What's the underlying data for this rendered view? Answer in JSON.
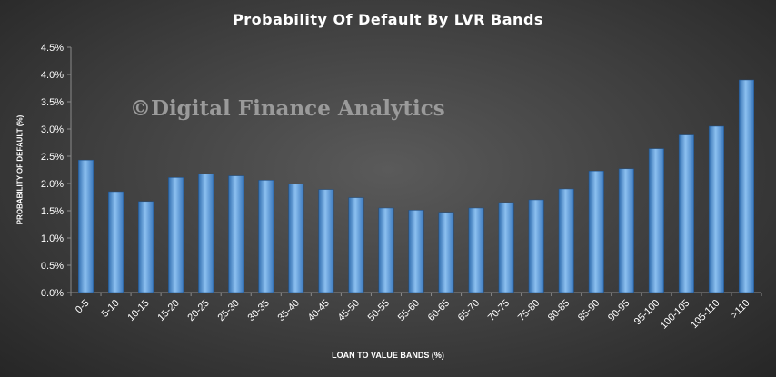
{
  "chart_data": {
    "type": "bar",
    "title": "Probability  Of Default By LVR Bands",
    "xlabel": "LOAN TO VALUE BANDS (%)",
    "ylabel": "PROBABILITY OF DEFAULT (%)",
    "watermark": "©Digital Finance Analytics",
    "ylim": [
      0,
      4.5
    ],
    "yticks": [
      "0.0%",
      "0.5%",
      "1.0%",
      "1.5%",
      "2.0%",
      "2.5%",
      "3.0%",
      "3.5%",
      "4.0%",
      "4.5%"
    ],
    "grid": false,
    "legend": "none",
    "bar_color": "#5b9bd5",
    "categories": [
      "0-5",
      "5-10",
      "10-15",
      "15-20",
      "20-25",
      "25-30",
      "30-35",
      "35-40",
      "40-45",
      "45-50",
      "50-55",
      "55-60",
      "60-65",
      "65-70",
      "70-75",
      "75-80",
      "80-85",
      "85-90",
      "90-95",
      "95-100",
      "100-105",
      "105-110",
      ">110"
    ],
    "values": [
      2.43,
      1.85,
      1.67,
      2.11,
      2.18,
      2.14,
      2.06,
      1.99,
      1.89,
      1.74,
      1.55,
      1.51,
      1.47,
      1.55,
      1.65,
      1.7,
      1.9,
      2.23,
      2.27,
      2.64,
      2.89,
      3.05,
      3.9
    ]
  }
}
